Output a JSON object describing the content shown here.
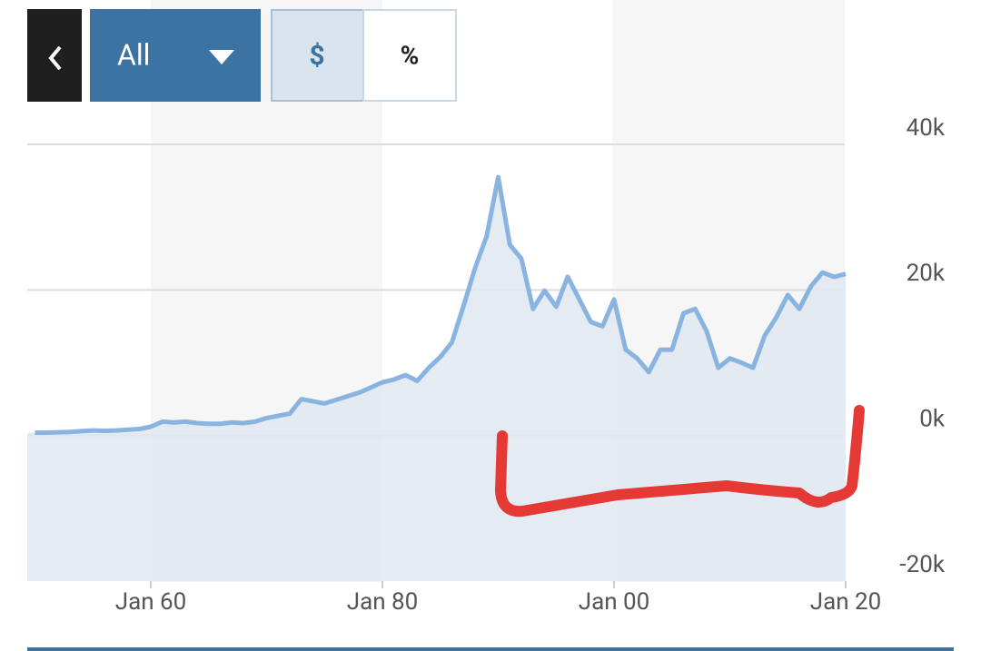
{
  "controls": {
    "range": "All",
    "dollar": "$",
    "percent": "%"
  },
  "chart_data": {
    "type": "area",
    "categories": [
      null,
      null,
      null,
      null,
      null,
      null,
      null,
      null,
      null,
      null,
      "Jan 60",
      null,
      null,
      null,
      null,
      null,
      null,
      null,
      null,
      null,
      null,
      null,
      null,
      null,
      null,
      null,
      null,
      null,
      null,
      null,
      "Jan 80",
      null,
      null,
      null,
      null,
      null,
      null,
      null,
      null,
      null,
      null,
      null,
      null,
      null,
      null,
      null,
      null,
      null,
      null,
      null,
      "Jan 00",
      null,
      null,
      null,
      null,
      null,
      null,
      null,
      null,
      null,
      null,
      null,
      null,
      null,
      null,
      null,
      null,
      null,
      null,
      null,
      "Jan 20"
    ],
    "series": [
      {
        "color": "#8ab4e0",
        "values": [
          400,
          400,
          450,
          500,
          600,
          700,
          650,
          700,
          800,
          900,
          1200,
          1900,
          1800,
          1900,
          1700,
          1600,
          1600,
          1800,
          1700,
          1900,
          2400,
          2700,
          3000,
          5000,
          4700,
          4400,
          4900,
          5400,
          5900,
          6600,
          7300,
          7700,
          8300,
          7500,
          9300,
          10800,
          12800,
          17800,
          23000,
          27400,
          35500,
          26200,
          24300,
          17400,
          19900,
          17700,
          21800,
          18700,
          15600,
          15000,
          18700,
          11800,
          10600,
          8700,
          11800,
          11800,
          16800,
          17400,
          14300,
          9300,
          10600,
          10000,
          9300,
          13700,
          16200,
          19300,
          17400,
          20500,
          22400,
          21800,
          22200
        ]
      }
    ],
    "ylim": [
      -20000,
      40000
    ],
    "yticks": [
      {
        "value": -20000,
        "label": "-20k"
      },
      {
        "value": 0,
        "label": "0k"
      },
      {
        "value": 20000,
        "label": "20k"
      },
      {
        "value": 40000,
        "label": "40k"
      }
    ],
    "grid": true,
    "fill_color": "#dfe8f0"
  }
}
